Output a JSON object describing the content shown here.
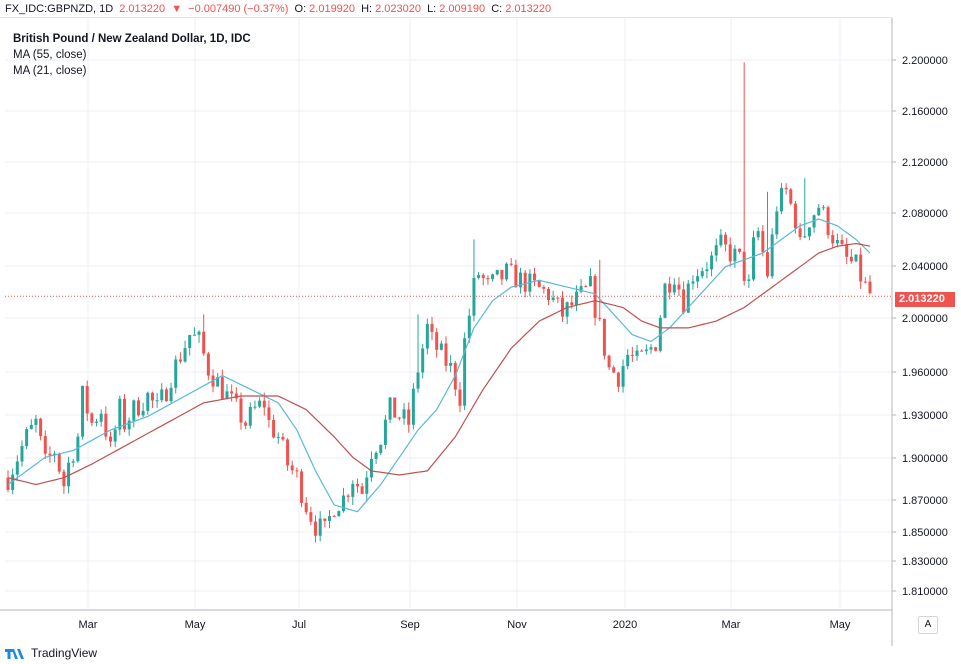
{
  "header": {
    "symbol": "FX_IDC:GBPNZD, 1D",
    "last": "2.013220",
    "change": "−0.007490 (−0.37%)",
    "open_label": "O:",
    "open": "2.019920",
    "high_label": "H:",
    "high": "2.023020",
    "low_label": "L:",
    "low": "2.009190",
    "close_label": "C:",
    "close": "2.013220"
  },
  "legend": {
    "title": "British Pound / New Zealand Dollar, 1D, IDC",
    "ma55": "MA (55, close)",
    "ma21": "MA (21, close)"
  },
  "footer": {
    "brand": "TradingView"
  },
  "axis_button": "A",
  "price_tag": "2.013220",
  "colors": {
    "up": "#26a69a",
    "down": "#ef5350",
    "ma21": "#58b9d9",
    "ma55": "#c0504d",
    "grid": "#eceff4"
  },
  "chart_data": {
    "type": "candlestick",
    "x_tick_labels": [
      "Mar",
      "May",
      "Jul",
      "Sep",
      "Nov",
      "2020",
      "Mar",
      "May"
    ],
    "y_tick_labels": [
      "2.200000",
      "2.160000",
      "2.120000",
      "2.080000",
      "2.040000",
      "2.000000",
      "1.960000",
      "1.930000",
      "1.900000",
      "1.870000",
      "1.850000",
      "1.830000",
      "1.810000"
    ],
    "y_range": [
      1.8,
      2.21
    ],
    "close_path": [
      [
        0,
        1.88
      ],
      [
        4,
        1.91
      ],
      [
        6,
        1.92
      ],
      [
        8,
        1.89
      ],
      [
        10,
        1.9
      ],
      [
        12,
        1.875
      ],
      [
        13,
        1.89
      ],
      [
        15,
        1.91
      ],
      [
        16,
        1.94
      ],
      [
        18,
        1.92
      ],
      [
        20,
        1.93
      ],
      [
        22,
        1.9
      ],
      [
        24,
        1.93
      ],
      [
        25,
        1.92
      ],
      [
        27,
        1.93
      ],
      [
        30,
        1.94
      ],
      [
        32,
        1.93
      ],
      [
        34,
        1.945
      ],
      [
        35,
        1.955
      ],
      [
        37,
        1.97
      ],
      [
        39,
        1.985
      ],
      [
        41,
        1.98
      ],
      [
        43,
        1.96
      ],
      [
        45,
        1.95
      ],
      [
        47,
        1.94
      ],
      [
        49,
        1.93
      ],
      [
        51,
        1.92
      ],
      [
        53,
        1.93
      ],
      [
        55,
        1.935
      ],
      [
        56,
        1.92
      ],
      [
        58,
        1.91
      ],
      [
        60,
        1.89
      ],
      [
        62,
        1.88
      ],
      [
        64,
        1.86
      ],
      [
        66,
        1.845
      ],
      [
        68,
        1.84
      ],
      [
        70,
        1.86
      ],
      [
        72,
        1.865
      ],
      [
        74,
        1.88
      ],
      [
        76,
        1.87
      ],
      [
        78,
        1.9
      ],
      [
        80,
        1.91
      ],
      [
        82,
        1.93
      ],
      [
        84,
        1.925
      ],
      [
        86,
        1.92
      ],
      [
        88,
        1.96
      ],
      [
        90,
        1.99
      ],
      [
        91,
        1.98
      ],
      [
        93,
        1.97
      ],
      [
        95,
        1.96
      ],
      [
        97,
        1.94
      ],
      [
        98,
        1.98
      ],
      [
        100,
        2.02
      ],
      [
        101,
        2.03
      ],
      [
        103,
        2.02
      ],
      [
        105,
        2.025
      ],
      [
        107,
        2.03
      ],
      [
        110,
        2.025
      ],
      [
        113,
        2.02
      ],
      [
        116,
        2.015
      ],
      [
        119,
        2.0
      ],
      [
        122,
        2.01
      ],
      [
        125,
        2.02
      ],
      [
        127,
        1.99
      ],
      [
        129,
        1.96
      ],
      [
        131,
        1.955
      ],
      [
        133,
        1.97
      ],
      [
        135,
        1.965
      ],
      [
        137,
        1.97
      ],
      [
        139,
        1.98
      ],
      [
        141,
        2.02
      ],
      [
        143,
        2.03
      ],
      [
        145,
        2.01
      ],
      [
        147,
        2.03
      ],
      [
        149,
        2.035
      ],
      [
        151,
        2.04
      ],
      [
        153,
        2.05
      ],
      [
        155,
        2.045
      ],
      [
        157,
        2.04
      ],
      [
        159,
        2.02
      ],
      [
        160,
        2.05
      ],
      [
        161,
        2.06
      ],
      [
        163,
        2.03
      ],
      [
        165,
        2.08
      ],
      [
        167,
        2.09
      ],
      [
        169,
        2.07
      ],
      [
        170,
        2.05
      ],
      [
        172,
        2.07
      ],
      [
        174,
        2.08
      ],
      [
        176,
        2.065
      ],
      [
        178,
        2.05
      ],
      [
        180,
        2.04
      ],
      [
        182,
        2.035
      ],
      [
        184,
        2.02
      ],
      [
        185,
        2.015
      ]
    ],
    "spikes": [
      [
        158,
        2.185
      ],
      [
        163,
        2.09
      ],
      [
        171,
        2.1
      ],
      [
        88,
        2.0
      ],
      [
        127,
        2.04
      ],
      [
        100,
        2.055
      ],
      [
        42,
        2.0
      ]
    ],
    "ma21_path": [
      [
        0,
        1.875
      ],
      [
        8,
        1.895
      ],
      [
        14,
        1.9
      ],
      [
        22,
        1.915
      ],
      [
        30,
        1.925
      ],
      [
        38,
        1.94
      ],
      [
        46,
        1.955
      ],
      [
        52,
        1.945
      ],
      [
        58,
        1.935
      ],
      [
        62,
        1.915
      ],
      [
        66,
        1.885
      ],
      [
        70,
        1.86
      ],
      [
        75,
        1.855
      ],
      [
        80,
        1.875
      ],
      [
        84,
        1.895
      ],
      [
        88,
        1.915
      ],
      [
        92,
        1.93
      ],
      [
        96,
        1.955
      ],
      [
        100,
        1.99
      ],
      [
        104,
        2.01
      ],
      [
        108,
        2.02
      ],
      [
        114,
        2.025
      ],
      [
        120,
        2.02
      ],
      [
        126,
        2.015
      ],
      [
        130,
        2.0
      ],
      [
        134,
        1.985
      ],
      [
        138,
        1.98
      ],
      [
        142,
        1.99
      ],
      [
        146,
        2.005
      ],
      [
        150,
        2.02
      ],
      [
        154,
        2.035
      ],
      [
        158,
        2.04
      ],
      [
        162,
        2.045
      ],
      [
        166,
        2.055
      ],
      [
        170,
        2.065
      ],
      [
        174,
        2.07
      ],
      [
        178,
        2.065
      ],
      [
        182,
        2.055
      ],
      [
        185,
        2.045
      ]
    ],
    "ma55_path": [
      [
        0,
        1.88
      ],
      [
        6,
        1.875
      ],
      [
        12,
        1.88
      ],
      [
        18,
        1.89
      ],
      [
        26,
        1.905
      ],
      [
        34,
        1.92
      ],
      [
        42,
        1.935
      ],
      [
        50,
        1.94
      ],
      [
        58,
        1.94
      ],
      [
        64,
        1.93
      ],
      [
        70,
        1.91
      ],
      [
        74,
        1.895
      ],
      [
        78,
        1.885
      ],
      [
        84,
        1.882
      ],
      [
        90,
        1.885
      ],
      [
        96,
        1.91
      ],
      [
        102,
        1.945
      ],
      [
        108,
        1.975
      ],
      [
        114,
        1.995
      ],
      [
        120,
        2.005
      ],
      [
        126,
        2.01
      ],
      [
        132,
        2.005
      ],
      [
        136,
        1.995
      ],
      [
        140,
        1.99
      ],
      [
        146,
        1.99
      ],
      [
        152,
        1.995
      ],
      [
        158,
        2.005
      ],
      [
        162,
        2.015
      ],
      [
        166,
        2.025
      ],
      [
        170,
        2.035
      ],
      [
        174,
        2.045
      ],
      [
        178,
        2.05
      ],
      [
        182,
        2.052
      ],
      [
        185,
        2.05
      ]
    ]
  }
}
